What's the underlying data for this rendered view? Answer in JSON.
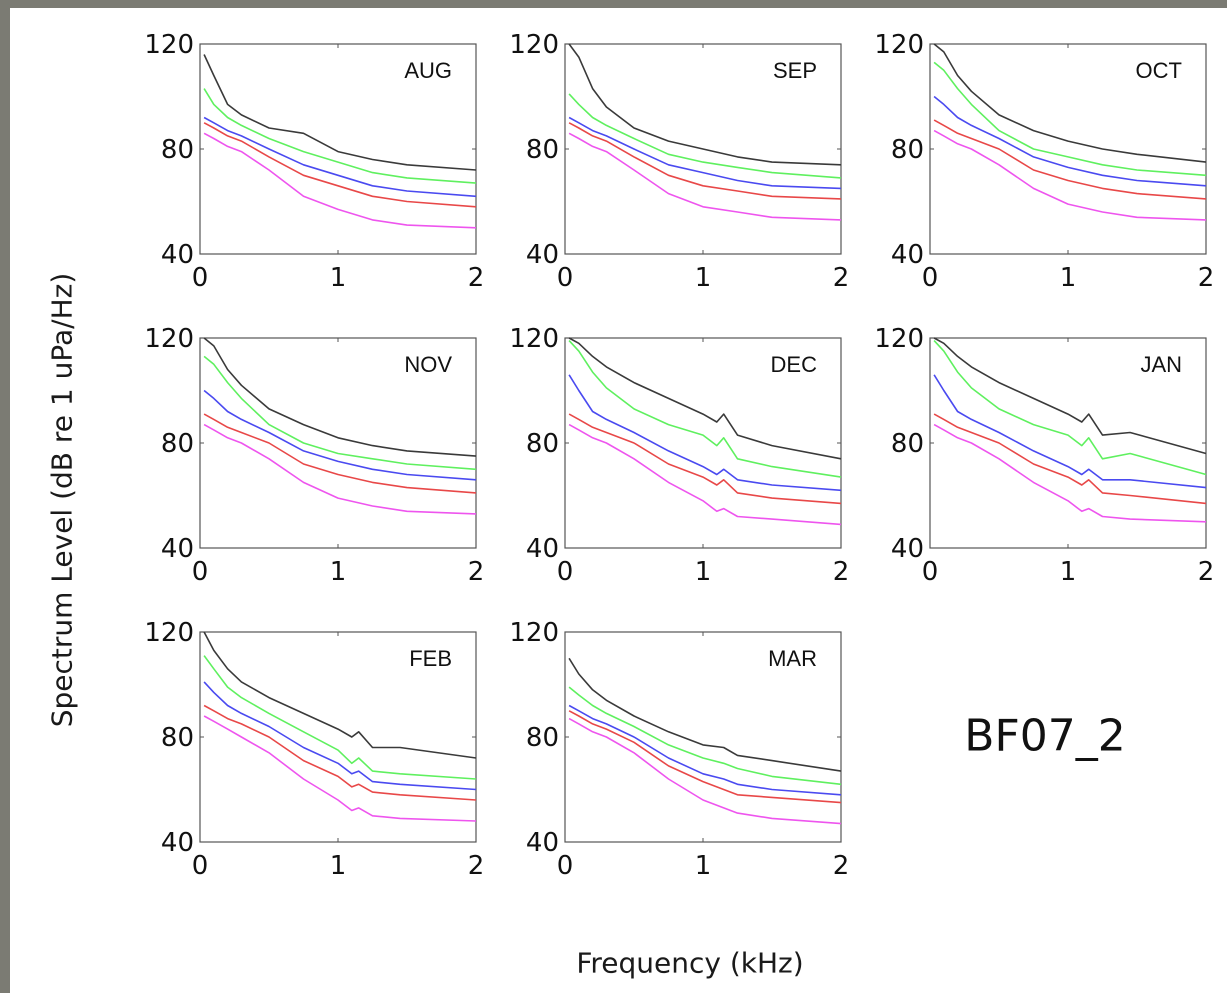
{
  "station_label": "BF07_2",
  "xlabel": "Frequency (kHz)",
  "ylabel": "Spectrum Level (dB re 1 uPa/Hz)",
  "colors": {
    "black": "#3a3a3a",
    "green": "#5ff05f",
    "blue": "#4a4af0",
    "red": "#e84848",
    "magenta": "#ee55ee",
    "frame": "#555555",
    "slide_border": "#7b7b73"
  },
  "chart_data": [
    {
      "type": "line",
      "title": "AUG",
      "xlim": [
        0,
        2
      ],
      "ylim": [
        40,
        120
      ],
      "xticks": [
        "0",
        "1",
        "2"
      ],
      "yticks": [
        "40",
        "80",
        "120"
      ],
      "x": [
        0.03,
        0.1,
        0.2,
        0.3,
        0.5,
        0.75,
        1.0,
        1.25,
        1.5,
        2.0
      ],
      "series": [
        {
          "color": "black",
          "values": [
            116,
            108,
            97,
            93,
            88,
            86,
            79,
            76,
            74,
            72
          ]
        },
        {
          "color": "green",
          "values": [
            103,
            97,
            92,
            89,
            84,
            79,
            75,
            71,
            69,
            67
          ]
        },
        {
          "color": "blue",
          "values": [
            92,
            90,
            87,
            85,
            80,
            74,
            70,
            66,
            64,
            62
          ]
        },
        {
          "color": "red",
          "values": [
            90,
            88,
            85,
            83,
            77,
            70,
            66,
            62,
            60,
            58
          ]
        },
        {
          "color": "magenta",
          "values": [
            86,
            84,
            81,
            79,
            72,
            62,
            57,
            53,
            51,
            50
          ]
        }
      ]
    },
    {
      "type": "line",
      "title": "SEP",
      "xlim": [
        0,
        2
      ],
      "ylim": [
        40,
        120
      ],
      "xticks": [
        "0",
        "1",
        "2"
      ],
      "yticks": [
        "40",
        "80",
        "120"
      ],
      "x": [
        0.03,
        0.1,
        0.2,
        0.3,
        0.5,
        0.75,
        1.0,
        1.25,
        1.5,
        2.0
      ],
      "series": [
        {
          "color": "black",
          "values": [
            120,
            115,
            103,
            96,
            88,
            83,
            80,
            77,
            75,
            74
          ]
        },
        {
          "color": "green",
          "values": [
            101,
            97,
            92,
            89,
            84,
            78,
            75,
            73,
            71,
            69
          ]
        },
        {
          "color": "blue",
          "values": [
            92,
            90,
            87,
            85,
            80,
            74,
            71,
            68,
            66,
            65
          ]
        },
        {
          "color": "red",
          "values": [
            90,
            88,
            85,
            83,
            77,
            70,
            66,
            64,
            62,
            61
          ]
        },
        {
          "color": "magenta",
          "values": [
            86,
            84,
            81,
            79,
            72,
            63,
            58,
            56,
            54,
            53
          ]
        }
      ]
    },
    {
      "type": "line",
      "title": "OCT",
      "xlim": [
        0,
        2
      ],
      "ylim": [
        40,
        120
      ],
      "xticks": [
        "0",
        "1",
        "2"
      ],
      "yticks": [
        "40",
        "80",
        "120"
      ],
      "x": [
        0.03,
        0.1,
        0.2,
        0.3,
        0.5,
        0.75,
        1.0,
        1.25,
        1.5,
        2.0
      ],
      "series": [
        {
          "color": "black",
          "values": [
            120,
            117,
            108,
            102,
            93,
            87,
            83,
            80,
            78,
            75
          ]
        },
        {
          "color": "green",
          "values": [
            113,
            110,
            103,
            97,
            87,
            80,
            77,
            74,
            72,
            70
          ]
        },
        {
          "color": "blue",
          "values": [
            100,
            97,
            92,
            89,
            84,
            77,
            73,
            70,
            68,
            66
          ]
        },
        {
          "color": "red",
          "values": [
            91,
            89,
            86,
            84,
            80,
            72,
            68,
            65,
            63,
            61
          ]
        },
        {
          "color": "magenta",
          "values": [
            87,
            85,
            82,
            80,
            74,
            65,
            59,
            56,
            54,
            53
          ]
        }
      ]
    },
    {
      "type": "line",
      "title": "NOV",
      "xlim": [
        0,
        2
      ],
      "ylim": [
        40,
        120
      ],
      "xticks": [
        "0",
        "1",
        "2"
      ],
      "yticks": [
        "40",
        "80",
        "120"
      ],
      "x": [
        0.03,
        0.1,
        0.2,
        0.3,
        0.5,
        0.75,
        1.0,
        1.25,
        1.5,
        2.0
      ],
      "series": [
        {
          "color": "black",
          "values": [
            120,
            117,
            108,
            102,
            93,
            87,
            82,
            79,
            77,
            75
          ]
        },
        {
          "color": "green",
          "values": [
            113,
            110,
            103,
            97,
            87,
            80,
            76,
            74,
            72,
            70
          ]
        },
        {
          "color": "blue",
          "values": [
            100,
            97,
            92,
            89,
            84,
            77,
            73,
            70,
            68,
            66
          ]
        },
        {
          "color": "red",
          "values": [
            91,
            89,
            86,
            84,
            80,
            72,
            68,
            65,
            63,
            61
          ]
        },
        {
          "color": "magenta",
          "values": [
            87,
            85,
            82,
            80,
            74,
            65,
            59,
            56,
            54,
            53
          ]
        }
      ]
    },
    {
      "type": "line",
      "title": "DEC",
      "xlim": [
        0,
        2
      ],
      "ylim": [
        40,
        120
      ],
      "xticks": [
        "0",
        "1",
        "2"
      ],
      "yticks": [
        "40",
        "80",
        "120"
      ],
      "x": [
        0.03,
        0.1,
        0.2,
        0.3,
        0.5,
        0.75,
        1.0,
        1.1,
        1.15,
        1.25,
        1.5,
        2.0
      ],
      "series": [
        {
          "color": "black",
          "values": [
            120,
            118,
            113,
            109,
            103,
            97,
            91,
            88,
            91,
            83,
            79,
            74
          ]
        },
        {
          "color": "green",
          "values": [
            119,
            115,
            107,
            101,
            93,
            87,
            83,
            79,
            82,
            74,
            71,
            67
          ]
        },
        {
          "color": "blue",
          "values": [
            106,
            100,
            92,
            89,
            84,
            77,
            71,
            68,
            70,
            66,
            64,
            62
          ]
        },
        {
          "color": "red",
          "values": [
            91,
            89,
            86,
            84,
            80,
            72,
            67,
            64,
            66,
            61,
            59,
            57
          ]
        },
        {
          "color": "magenta",
          "values": [
            87,
            85,
            82,
            80,
            74,
            65,
            58,
            54,
            55,
            52,
            51,
            49
          ]
        }
      ]
    },
    {
      "type": "line",
      "title": "JAN",
      "xlim": [
        0,
        2
      ],
      "ylim": [
        40,
        120
      ],
      "xticks": [
        "0",
        "1",
        "2"
      ],
      "yticks": [
        "40",
        "80",
        "120"
      ],
      "x": [
        0.03,
        0.1,
        0.2,
        0.3,
        0.5,
        0.75,
        1.0,
        1.1,
        1.15,
        1.25,
        1.45,
        2.0
      ],
      "series": [
        {
          "color": "black",
          "values": [
            120,
            118,
            113,
            109,
            103,
            97,
            91,
            88,
            91,
            83,
            84,
            76
          ]
        },
        {
          "color": "green",
          "values": [
            119,
            115,
            107,
            101,
            93,
            87,
            83,
            79,
            82,
            74,
            76,
            68
          ]
        },
        {
          "color": "blue",
          "values": [
            106,
            100,
            92,
            89,
            84,
            77,
            71,
            68,
            70,
            66,
            66,
            63
          ]
        },
        {
          "color": "red",
          "values": [
            91,
            89,
            86,
            84,
            80,
            72,
            67,
            64,
            66,
            61,
            60,
            57
          ]
        },
        {
          "color": "magenta",
          "values": [
            87,
            85,
            82,
            80,
            74,
            65,
            58,
            54,
            55,
            52,
            51,
            50
          ]
        }
      ]
    },
    {
      "type": "line",
      "title": "FEB",
      "xlim": [
        0,
        2
      ],
      "ylim": [
        40,
        120
      ],
      "xticks": [
        "0",
        "1",
        "2"
      ],
      "yticks": [
        "40",
        "80",
        "120"
      ],
      "x": [
        0.03,
        0.1,
        0.2,
        0.3,
        0.5,
        0.75,
        1.0,
        1.1,
        1.15,
        1.25,
        1.45,
        2.0
      ],
      "series": [
        {
          "color": "black",
          "values": [
            120,
            113,
            106,
            101,
            95,
            89,
            83,
            80,
            82,
            76,
            76,
            72
          ]
        },
        {
          "color": "green",
          "values": [
            111,
            106,
            99,
            95,
            89,
            82,
            75,
            70,
            72,
            67,
            66,
            64
          ]
        },
        {
          "color": "blue",
          "values": [
            101,
            97,
            92,
            89,
            84,
            76,
            70,
            66,
            67,
            63,
            62,
            60
          ]
        },
        {
          "color": "red",
          "values": [
            92,
            90,
            87,
            85,
            80,
            71,
            65,
            61,
            62,
            59,
            58,
            56
          ]
        },
        {
          "color": "magenta",
          "values": [
            88,
            86,
            83,
            80,
            74,
            64,
            56,
            52,
            53,
            50,
            49,
            48
          ]
        }
      ]
    },
    {
      "type": "line",
      "title": "MAR",
      "xlim": [
        0,
        2
      ],
      "ylim": [
        40,
        120
      ],
      "xticks": [
        "0",
        "1",
        "2"
      ],
      "yticks": [
        "40",
        "80",
        "120"
      ],
      "x": [
        0.03,
        0.1,
        0.2,
        0.3,
        0.5,
        0.75,
        1.0,
        1.15,
        1.25,
        1.5,
        2.0
      ],
      "series": [
        {
          "color": "black",
          "values": [
            110,
            104,
            98,
            94,
            88,
            82,
            77,
            76,
            73,
            71,
            67
          ]
        },
        {
          "color": "green",
          "values": [
            99,
            96,
            92,
            89,
            84,
            77,
            72,
            70,
            68,
            65,
            62
          ]
        },
        {
          "color": "blue",
          "values": [
            92,
            90,
            87,
            85,
            80,
            72,
            66,
            64,
            62,
            60,
            58
          ]
        },
        {
          "color": "red",
          "values": [
            90,
            88,
            85,
            83,
            78,
            69,
            63,
            60,
            58,
            57,
            55
          ]
        },
        {
          "color": "magenta",
          "values": [
            87,
            85,
            82,
            80,
            74,
            64,
            56,
            53,
            51,
            49,
            47
          ]
        }
      ]
    }
  ]
}
